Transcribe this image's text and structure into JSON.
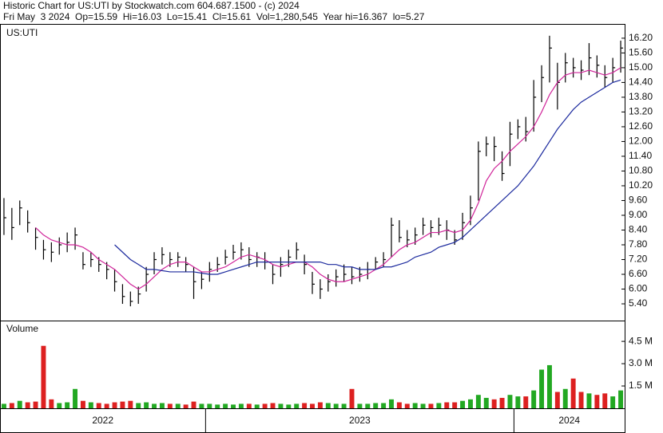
{
  "chart_data": {
    "type": "ohlc",
    "title": "Historic Chart for US:UTI by Stockwatch.com 604.687.1500 - (c) 2024",
    "subtitle": "Fri May  3 2024  Op=15.59  Hi=16.03  Lo=15.41  Cl=15.61  Vol=1,280,545  Year hi=16.367  lo=5.27",
    "symbol_label": "US:UTI",
    "color": "#000000",
    "categories": [
      "2022",
      "2022",
      "2022",
      "2022",
      "2022",
      "2022",
      "2022",
      "2022",
      "2022",
      "2022",
      "2022",
      "2022",
      "2022",
      "2022",
      "2022",
      "2022",
      "2022",
      "2022",
      "2022",
      "2022",
      "2022",
      "2022",
      "2022",
      "2022",
      "2022",
      "2022",
      "2023",
      "2023",
      "2023",
      "2023",
      "2023",
      "2023",
      "2023",
      "2023",
      "2023",
      "2023",
      "2023",
      "2023",
      "2023",
      "2023",
      "2023",
      "2023",
      "2023",
      "2023",
      "2023",
      "2023",
      "2023",
      "2023",
      "2023",
      "2023",
      "2023",
      "2023",
      "2023",
      "2023",
      "2023",
      "2023",
      "2023",
      "2023",
      "2023",
      "2023",
      "2023",
      "2023",
      "2023",
      "2023",
      "2023",
      "2024",
      "2024",
      "2024",
      "2024",
      "2024",
      "2024",
      "2024",
      "2024",
      "2024",
      "2024",
      "2024",
      "2024",
      "2024",
      "2024"
    ],
    "high": [
      9.7,
      9.3,
      9.6,
      9.2,
      8.5,
      8.0,
      7.9,
      8.1,
      8.3,
      8.5,
      7.5,
      7.5,
      7.3,
      7.1,
      6.8,
      6.2,
      5.9,
      6.1,
      6.9,
      7.5,
      7.7,
      7.5,
      7.5,
      7.3,
      6.9,
      6.7,
      7.1,
      7.3,
      7.6,
      7.8,
      7.9,
      7.7,
      7.5,
      7.5,
      7.0,
      7.3,
      7.6,
      7.9,
      7.4,
      6.7,
      6.4,
      6.6,
      6.8,
      7.0,
      6.9,
      6.9,
      7.1,
      7.3,
      7.5,
      8.9,
      8.8,
      8.4,
      8.5,
      8.9,
      8.8,
      8.9,
      8.8,
      8.4,
      9.1,
      9.8,
      12.0,
      12.2,
      12.2,
      11.6,
      12.8,
      12.9,
      13.0,
      14.5,
      15.1,
      16.3,
      15.2,
      15.6,
      15.4,
      15.3,
      16.0,
      15.5,
      15.1,
      15.4,
      16.1
    ],
    "low": [
      8.2,
      8.0,
      8.6,
      8.3,
      7.6,
      7.2,
      7.1,
      7.4,
      7.5,
      7.6,
      6.8,
      6.9,
      6.7,
      6.4,
      5.9,
      5.4,
      5.3,
      5.4,
      5.9,
      6.6,
      7.0,
      6.9,
      6.9,
      6.7,
      5.6,
      6.0,
      6.3,
      6.7,
      7.0,
      7.2,
      7.2,
      6.9,
      6.9,
      6.8,
      6.2,
      6.5,
      6.9,
      7.2,
      6.6,
      5.8,
      5.6,
      5.9,
      6.1,
      6.3,
      6.2,
      6.3,
      6.4,
      6.8,
      6.9,
      7.3,
      7.9,
      7.7,
      7.8,
      8.2,
      8.1,
      8.2,
      8.0,
      7.8,
      8.0,
      8.6,
      9.6,
      11.4,
      11.2,
      10.4,
      11.0,
      12.1,
      12.0,
      12.4,
      13.6,
      14.4,
      13.3,
      14.4,
      14.6,
      14.5,
      14.7,
      14.6,
      14.2,
      14.4,
      14.8
    ],
    "close": [
      8.9,
      8.5,
      9.3,
      8.7,
      8.1,
      7.6,
      7.5,
      7.8,
      7.9,
      8.2,
      7.0,
      7.2,
      7.0,
      6.8,
      6.3,
      5.7,
      5.5,
      5.8,
      6.6,
      7.2,
      7.4,
      7.2,
      7.3,
      7.0,
      6.3,
      6.4,
      6.8,
      7.0,
      7.3,
      7.5,
      7.6,
      7.2,
      7.3,
      7.1,
      6.6,
      7.0,
      7.3,
      7.6,
      7.0,
      6.2,
      6.0,
      6.3,
      6.5,
      6.6,
      6.5,
      6.6,
      6.8,
      7.1,
      7.2,
      8.6,
      8.1,
      8.0,
      8.2,
      8.6,
      8.5,
      8.6,
      8.4,
      8.0,
      8.7,
      9.3,
      11.6,
      11.9,
      11.8,
      10.7,
      12.3,
      12.6,
      12.4,
      13.8,
      14.6,
      15.8,
      14.4,
      15.2,
      15.0,
      14.9,
      15.4,
      15.1,
      14.6,
      15.0,
      15.8
    ],
    "moving_averages": [
      {
        "color": "#d0259a",
        "values": [
          null,
          null,
          null,
          null,
          8.5,
          8.2,
          8.0,
          7.9,
          7.8,
          7.8,
          7.7,
          7.5,
          7.2,
          7.0,
          6.8,
          6.5,
          6.2,
          6.0,
          6.2,
          6.5,
          6.8,
          7.0,
          7.1,
          7.1,
          6.9,
          6.7,
          6.7,
          6.8,
          6.9,
          7.1,
          7.3,
          7.4,
          7.3,
          7.2,
          7.0,
          6.9,
          7.0,
          7.1,
          7.1,
          6.9,
          6.6,
          6.4,
          6.3,
          6.3,
          6.4,
          6.5,
          6.6,
          6.8,
          7.0,
          7.3,
          7.6,
          7.8,
          7.9,
          8.1,
          8.3,
          8.3,
          8.4,
          8.3,
          8.4,
          8.8,
          9.5,
          10.4,
          10.9,
          11.2,
          11.6,
          11.9,
          12.2,
          12.6,
          13.2,
          13.9,
          14.4,
          14.7,
          14.8,
          14.8,
          14.9,
          14.8,
          14.7,
          14.8,
          15.0
        ]
      },
      {
        "color": "#1c2a9e",
        "values": [
          null,
          null,
          null,
          null,
          null,
          null,
          null,
          null,
          null,
          null,
          null,
          null,
          null,
          null,
          7.8,
          7.5,
          7.2,
          7.0,
          6.8,
          6.8,
          6.75,
          6.7,
          6.7,
          6.7,
          6.7,
          6.65,
          6.6,
          6.6,
          6.7,
          6.8,
          6.9,
          7.0,
          7.1,
          7.1,
          7.1,
          7.1,
          7.1,
          7.1,
          7.1,
          7.1,
          7.1,
          7.0,
          7.0,
          6.9,
          6.9,
          6.8,
          6.8,
          6.8,
          6.9,
          6.9,
          7.0,
          7.1,
          7.3,
          7.4,
          7.5,
          7.7,
          7.8,
          7.9,
          8.1,
          8.4,
          8.7,
          9.0,
          9.3,
          9.6,
          9.9,
          10.2,
          10.6,
          11.0,
          11.5,
          12.0,
          12.5,
          12.9,
          13.3,
          13.6,
          13.8,
          14.0,
          14.2,
          14.4,
          14.5
        ]
      }
    ],
    "ylim": [
      4.72,
      16.78
    ],
    "yticks": [
      {
        "value": 5.4,
        "label": "5.40"
      },
      {
        "value": 6.0,
        "label": "6.00"
      },
      {
        "value": 6.6,
        "label": "6.60"
      },
      {
        "value": 7.2,
        "label": "7.20"
      },
      {
        "value": 7.8,
        "label": "7.80"
      },
      {
        "value": 8.4,
        "label": "8.40"
      },
      {
        "value": 9.0,
        "label": "9.00"
      },
      {
        "value": 9.6,
        "label": "9.60"
      },
      {
        "value": 10.2,
        "label": "10.20"
      },
      {
        "value": 10.8,
        "label": "10.80"
      },
      {
        "value": 11.4,
        "label": "11.40"
      },
      {
        "value": 12.0,
        "label": "12.00"
      },
      {
        "value": 12.6,
        "label": "12.60"
      },
      {
        "value": 13.2,
        "label": "13.20"
      },
      {
        "value": 13.8,
        "label": "13.80"
      },
      {
        "value": 14.4,
        "label": "14.40"
      },
      {
        "value": 15.0,
        "label": "15.00"
      },
      {
        "value": 15.6,
        "label": "15.60"
      },
      {
        "value": 16.2,
        "label": "16.20"
      }
    ],
    "volume": {
      "label": "Volume",
      "up_color": "#22a822",
      "down_color": "#dd2020",
      "values": [
        300000,
        350000,
        500000,
        400000,
        450000,
        4200000,
        600000,
        350000,
        400000,
        1300000,
        500000,
        400000,
        350000,
        300000,
        400000,
        450000,
        500000,
        350000,
        400000,
        300000,
        350000,
        300000,
        300000,
        250000,
        450000,
        300000,
        300000,
        250000,
        300000,
        250000,
        300000,
        300000,
        250000,
        300000,
        350000,
        300000,
        250000,
        300000,
        350000,
        300000,
        400000,
        350000,
        300000,
        300000,
        1300000,
        300000,
        300000,
        350000,
        350000,
        600000,
        400000,
        300000,
        350000,
        300000,
        300000,
        350000,
        400000,
        400000,
        500000,
        600000,
        900000,
        700000,
        600000,
        700000,
        900000,
        800000,
        800000,
        1200000,
        2600000,
        2900000,
        1100000,
        1300000,
        2000000,
        1100000,
        1000000,
        900000,
        1000000,
        800000,
        1200000
      ],
      "ylim": [
        0,
        5900000
      ],
      "yticks": [
        {
          "value": 1500000,
          "label": "1.5 M"
        },
        {
          "value": 3000000,
          "label": "3.0 M"
        },
        {
          "value": 4500000,
          "label": "4.5 M"
        }
      ]
    }
  }
}
